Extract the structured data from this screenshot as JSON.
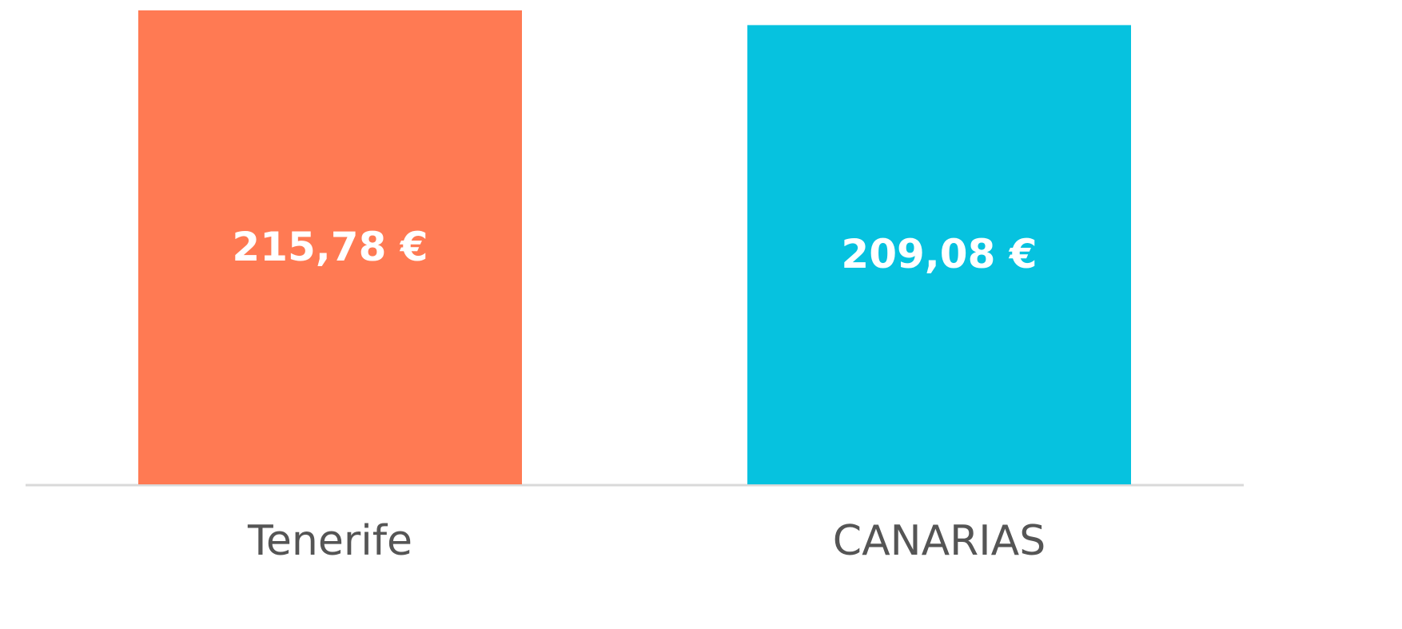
{
  "chart_data": {
    "type": "bar",
    "categories": [
      "Tenerife",
      "CANARIAS"
    ],
    "values": [
      215.78,
      209.08
    ],
    "value_labels": [
      "215,78 €",
      "209,08 €"
    ],
    "colors": [
      "#ff7a53",
      "#06c2df"
    ]
  }
}
